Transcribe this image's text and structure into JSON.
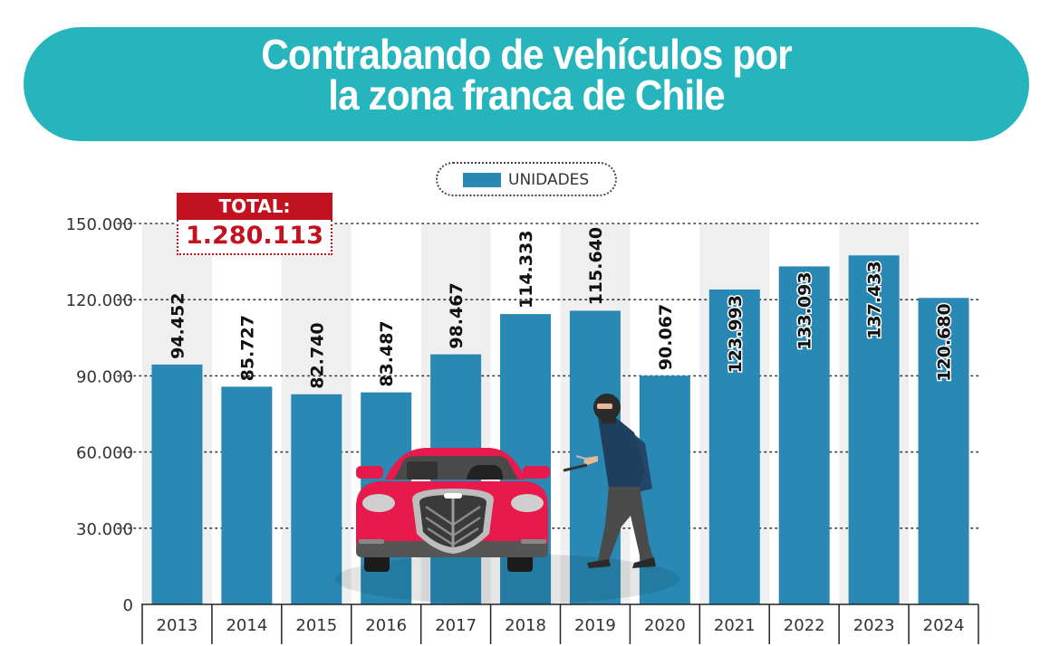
{
  "header": {
    "title_line1": "Contrabando de vehículos por",
    "title_line2": "la zona franca de Chile"
  },
  "total": {
    "label": "TOTAL:",
    "value": "1.280.113"
  },
  "illustration": {
    "car_icon": "red-car-front",
    "thief_icon": "masked-thief"
  },
  "colors": {
    "banner": "#26b5bd",
    "bar": "#2989b4",
    "total": "#c2121f",
    "stripe": "#efefef"
  },
  "chart_data": {
    "type": "bar",
    "title": "Contrabando de vehículos por la zona franca de Chile",
    "xlabel": "",
    "ylabel": "",
    "legend": {
      "entries": [
        "UNIDADES"
      ],
      "placement": "top-center"
    },
    "categories": [
      "2013",
      "2014",
      "2015",
      "2016",
      "2017",
      "2018",
      "2019",
      "2020",
      "2021",
      "2022",
      "2023",
      "2024"
    ],
    "values": [
      94452,
      85727,
      82740,
      83487,
      98467,
      114333,
      115640,
      90067,
      123993,
      133093,
      137433,
      120680
    ],
    "value_labels": [
      "94.452",
      "85.727",
      "82.740",
      "83.487",
      "98.467",
      "114.333",
      "115.640",
      "90.067",
      "123.993",
      "133.093",
      "137.433",
      "120.680"
    ],
    "ylim": [
      0,
      150000
    ],
    "yticks": [
      0,
      30000,
      60000,
      90000,
      120000,
      150000
    ],
    "ytick_labels": [
      "0",
      "30.000",
      "60.000",
      "90.000",
      "120.000",
      "150.000"
    ],
    "grid": true
  }
}
